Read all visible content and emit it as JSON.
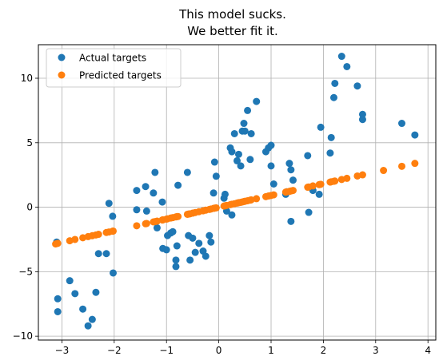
{
  "chart_data": {
    "type": "scatter",
    "title_lines": [
      "This model sucks.",
      "We better fit it."
    ],
    "xlabel": "",
    "ylabel": "",
    "xlim": [
      -3.45,
      4.15
    ],
    "ylim": [
      -10.3,
      12.6
    ],
    "xticks": [
      -3,
      -2,
      -1,
      0,
      1,
      2,
      3,
      4
    ],
    "yticks": [
      -10,
      -5,
      0,
      5,
      10
    ],
    "grid": true,
    "legend_position": "top-left",
    "series": [
      {
        "name": "Actual targets",
        "color": "#1f77b4",
        "points": [
          [
            -3.1,
            -2.7
          ],
          [
            -3.08,
            -7.1
          ],
          [
            -3.08,
            -8.1
          ],
          [
            -2.85,
            -5.7
          ],
          [
            -2.75,
            -6.7
          ],
          [
            -2.6,
            -7.9
          ],
          [
            -2.5,
            -9.2
          ],
          [
            -2.42,
            -8.7
          ],
          [
            -2.35,
            -6.6
          ],
          [
            -2.3,
            -3.6
          ],
          [
            -2.15,
            -3.6
          ],
          [
            -2.1,
            0.3
          ],
          [
            -2.03,
            -0.7
          ],
          [
            -2.02,
            -5.1
          ],
          [
            -1.57,
            1.3
          ],
          [
            -1.57,
            -0.2
          ],
          [
            -1.4,
            1.6
          ],
          [
            -1.38,
            -0.3
          ],
          [
            -1.25,
            1.1
          ],
          [
            -1.22,
            2.7
          ],
          [
            -1.18,
            -1.6
          ],
          [
            -1.08,
            0.4
          ],
          [
            -1.07,
            -3.2
          ],
          [
            -1.0,
            -3.3
          ],
          [
            -0.98,
            -2.2
          ],
          [
            -0.92,
            -2.0
          ],
          [
            -0.88,
            -1.9
          ],
          [
            -0.82,
            -4.1
          ],
          [
            -0.82,
            -4.6
          ],
          [
            -0.8,
            -3.0
          ],
          [
            -0.78,
            1.7
          ],
          [
            -0.6,
            2.7
          ],
          [
            -0.58,
            -2.2
          ],
          [
            -0.55,
            -4.1
          ],
          [
            -0.5,
            -2.4
          ],
          [
            -0.45,
            -3.5
          ],
          [
            -0.38,
            -2.8
          ],
          [
            -0.3,
            -3.4
          ],
          [
            -0.25,
            -3.8
          ],
          [
            -0.18,
            -2.2
          ],
          [
            -0.15,
            -2.7
          ],
          [
            -0.1,
            1.1
          ],
          [
            -0.08,
            3.5
          ],
          [
            -0.05,
            2.4
          ],
          [
            0.1,
            0.7
          ],
          [
            0.12,
            1.0
          ],
          [
            0.15,
            -0.3
          ],
          [
            0.22,
            4.6
          ],
          [
            0.25,
            4.3
          ],
          [
            0.25,
            -0.6
          ],
          [
            0.3,
            5.7
          ],
          [
            0.35,
            3.6
          ],
          [
            0.38,
            4.1
          ],
          [
            0.42,
            3.2
          ],
          [
            0.45,
            5.9
          ],
          [
            0.48,
            6.5
          ],
          [
            0.5,
            5.9
          ],
          [
            0.55,
            7.5
          ],
          [
            0.6,
            3.7
          ],
          [
            0.62,
            5.7
          ],
          [
            0.72,
            8.2
          ],
          [
            0.9,
            4.3
          ],
          [
            0.95,
            4.6
          ],
          [
            1.0,
            4.8
          ],
          [
            1.0,
            3.2
          ],
          [
            1.05,
            1.8
          ],
          [
            1.28,
            1.0
          ],
          [
            1.3,
            1.2
          ],
          [
            1.35,
            3.4
          ],
          [
            1.38,
            2.9
          ],
          [
            1.38,
            -1.1
          ],
          [
            1.42,
            2.1
          ],
          [
            1.7,
            4.0
          ],
          [
            1.72,
            -0.4
          ],
          [
            1.8,
            1.3
          ],
          [
            1.92,
            1.0
          ],
          [
            1.95,
            6.2
          ],
          [
            2.13,
            4.2
          ],
          [
            2.15,
            5.4
          ],
          [
            2.2,
            8.5
          ],
          [
            2.22,
            9.6
          ],
          [
            2.35,
            11.7
          ],
          [
            2.45,
            10.9
          ],
          [
            2.65,
            9.4
          ],
          [
            2.75,
            7.2
          ],
          [
            2.75,
            6.8
          ],
          [
            3.5,
            6.5
          ],
          [
            3.75,
            5.6
          ]
        ]
      },
      {
        "name": "Predicted targets",
        "color": "#ff7f0e",
        "points": [
          [
            -3.12,
            -2.85
          ],
          [
            -3.08,
            -2.8
          ],
          [
            -2.85,
            -2.6
          ],
          [
            -2.75,
            -2.5
          ],
          [
            -2.6,
            -2.37
          ],
          [
            -2.5,
            -2.28
          ],
          [
            -2.42,
            -2.21
          ],
          [
            -2.35,
            -2.15
          ],
          [
            -2.3,
            -2.1
          ],
          [
            -2.15,
            -1.96
          ],
          [
            -2.1,
            -1.92
          ],
          [
            -2.03,
            -1.86
          ],
          [
            -2.02,
            -1.85
          ],
          [
            -1.57,
            -1.44
          ],
          [
            -1.4,
            -1.28
          ],
          [
            -1.38,
            -1.26
          ],
          [
            -1.25,
            -1.14
          ],
          [
            -1.22,
            -1.12
          ],
          [
            -1.18,
            -1.08
          ],
          [
            -1.08,
            -0.99
          ],
          [
            -1.07,
            -0.98
          ],
          [
            -1.0,
            -0.92
          ],
          [
            -0.98,
            -0.9
          ],
          [
            -0.92,
            -0.84
          ],
          [
            -0.88,
            -0.81
          ],
          [
            -0.82,
            -0.75
          ],
          [
            -0.8,
            -0.73
          ],
          [
            -0.78,
            -0.72
          ],
          [
            -0.6,
            -0.55
          ],
          [
            -0.58,
            -0.53
          ],
          [
            -0.55,
            -0.51
          ],
          [
            -0.5,
            -0.46
          ],
          [
            -0.45,
            -0.41
          ],
          [
            -0.38,
            -0.35
          ],
          [
            -0.3,
            -0.28
          ],
          [
            -0.25,
            -0.23
          ],
          [
            -0.18,
            -0.17
          ],
          [
            -0.15,
            -0.14
          ],
          [
            -0.1,
            -0.09
          ],
          [
            -0.08,
            -0.07
          ],
          [
            -0.05,
            -0.05
          ],
          [
            0.1,
            0.09
          ],
          [
            0.12,
            0.11
          ],
          [
            0.15,
            0.14
          ],
          [
            0.22,
            0.2
          ],
          [
            0.25,
            0.23
          ],
          [
            0.3,
            0.27
          ],
          [
            0.35,
            0.32
          ],
          [
            0.38,
            0.35
          ],
          [
            0.42,
            0.38
          ],
          [
            0.45,
            0.41
          ],
          [
            0.48,
            0.44
          ],
          [
            0.5,
            0.46
          ],
          [
            0.55,
            0.5
          ],
          [
            0.6,
            0.55
          ],
          [
            0.62,
            0.57
          ],
          [
            0.72,
            0.66
          ],
          [
            0.9,
            0.82
          ],
          [
            0.95,
            0.87
          ],
          [
            1.0,
            0.91
          ],
          [
            1.05,
            0.96
          ],
          [
            1.28,
            1.17
          ],
          [
            1.3,
            1.19
          ],
          [
            1.35,
            1.23
          ],
          [
            1.38,
            1.26
          ],
          [
            1.42,
            1.3
          ],
          [
            1.7,
            1.55
          ],
          [
            1.72,
            1.57
          ],
          [
            1.8,
            1.65
          ],
          [
            1.92,
            1.75
          ],
          [
            1.95,
            1.78
          ],
          [
            2.13,
            1.95
          ],
          [
            2.15,
            1.97
          ],
          [
            2.2,
            2.01
          ],
          [
            2.22,
            2.03
          ],
          [
            2.35,
            2.15
          ],
          [
            2.45,
            2.24
          ],
          [
            2.65,
            2.42
          ],
          [
            2.75,
            2.51
          ],
          [
            3.15,
            2.85
          ],
          [
            3.5,
            3.17
          ],
          [
            3.75,
            3.4
          ]
        ]
      }
    ]
  }
}
